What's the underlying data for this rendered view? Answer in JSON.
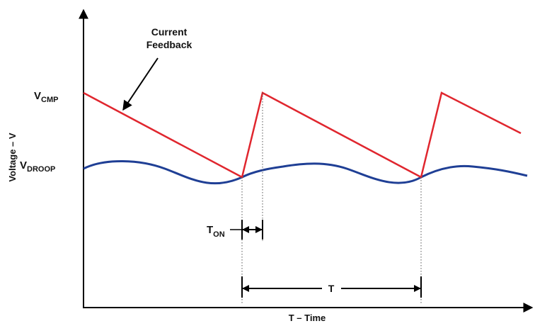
{
  "labels": {
    "annotation_line1": "Current",
    "annotation_line2": "Feedback",
    "v_cmp_main": "V",
    "v_cmp_sub": "CMP",
    "v_droop_main": "V",
    "v_droop_sub": "DROOP",
    "y_axis": "Voltage – V",
    "x_axis": "T – Time",
    "t_on_main": "T",
    "t_on_sub": "ON",
    "period": "T"
  },
  "colors": {
    "sawtooth": "#e0262e",
    "droop": "#1f3f95",
    "axis": "#000000",
    "guide": "#555555"
  }
}
